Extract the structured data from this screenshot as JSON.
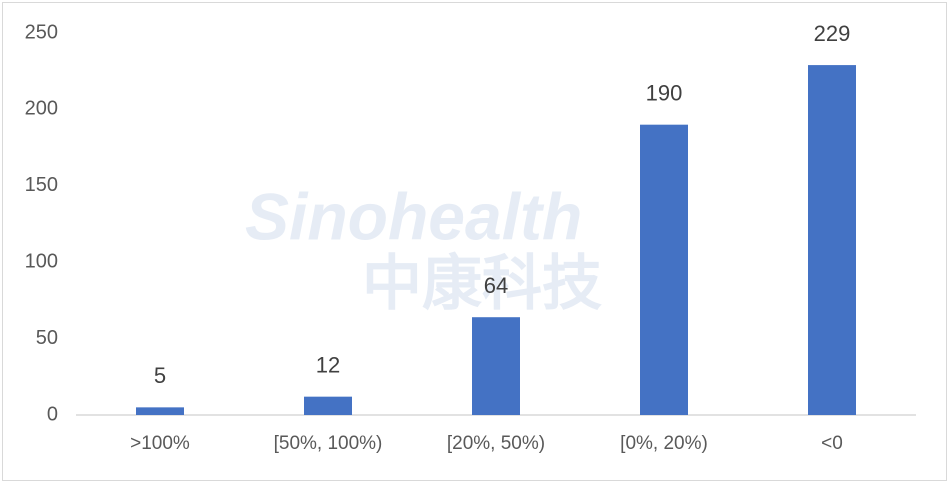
{
  "chart_data": {
    "type": "bar",
    "watermark": [
      "Sinohealth",
      "中康科技"
    ],
    "categories": [
      ">100%",
      "[50%, 100%)",
      "[20%, 50%)",
      "[0%, 20%)",
      "<0"
    ],
    "values": [
      5,
      12,
      64,
      190,
      229
    ],
    "color": "#4472c4",
    "ylim": [
      0,
      250
    ],
    "yticks": [
      0,
      50,
      100,
      150,
      200,
      250
    ],
    "grid": false
  }
}
